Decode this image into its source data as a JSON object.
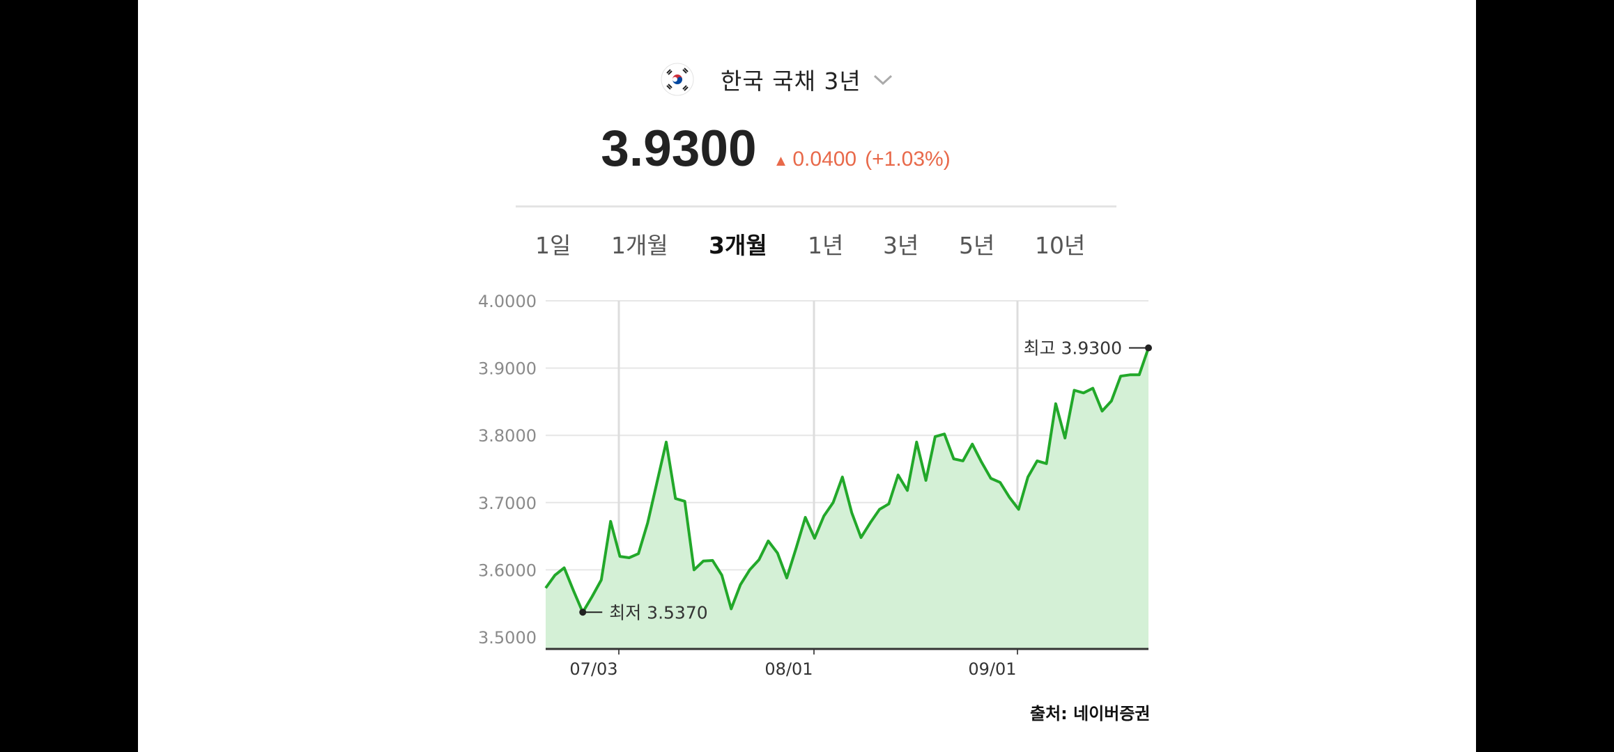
{
  "header": {
    "title": "한국 국채 3년",
    "flag_icon": "korea-flag-icon",
    "dropdown_icon": "chevron-down-icon"
  },
  "price": {
    "value": "3.9300",
    "change": "0.0400",
    "change_pct": "(+1.03%)",
    "direction_icon": "triangle-up-icon",
    "change_color": "#e8694a"
  },
  "tabs": [
    {
      "label": "1일",
      "active": false
    },
    {
      "label": "1개월",
      "active": false
    },
    {
      "label": "3개월",
      "active": true
    },
    {
      "label": "1년",
      "active": false
    },
    {
      "label": "3년",
      "active": false
    },
    {
      "label": "5년",
      "active": false
    },
    {
      "label": "10년",
      "active": false
    }
  ],
  "chart_data": {
    "type": "area",
    "ylim": [
      3.5,
      4.0
    ],
    "yticks": [
      "4.0000",
      "3.9000",
      "3.8000",
      "3.7000",
      "3.6000",
      "3.5000"
    ],
    "xticks": [
      "07/03",
      "08/01",
      "09/01"
    ],
    "grid": true,
    "line_color": "#22a82a",
    "fill_color": "#d4f0d6",
    "series": [
      {
        "values": [
          3.573,
          3.592,
          3.603,
          3.569,
          3.537,
          3.56,
          3.585,
          3.672,
          3.62,
          3.618,
          3.624,
          3.67,
          3.73,
          3.79,
          3.706,
          3.702,
          3.6,
          3.613,
          3.614,
          3.592,
          3.542,
          3.578,
          3.6,
          3.615,
          3.643,
          3.625,
          3.588,
          3.632,
          3.678,
          3.647,
          3.68,
          3.7,
          3.738,
          3.685,
          3.648,
          3.67,
          3.69,
          3.698,
          3.741,
          3.718,
          3.79,
          3.733,
          3.798,
          3.802,
          3.765,
          3.762,
          3.787,
          3.76,
          3.736,
          3.73,
          3.708,
          3.69,
          3.738,
          3.762,
          3.758,
          3.847,
          3.796,
          3.867,
          3.863,
          3.87,
          3.836,
          3.851,
          3.888,
          3.89,
          3.89,
          3.93
        ]
      }
    ],
    "annotations": [
      {
        "label": "최저 3.5370",
        "value": 3.537
      },
      {
        "label": "최고 3.9300",
        "value": 3.93
      }
    ]
  },
  "source": "출처: 네이버증권"
}
